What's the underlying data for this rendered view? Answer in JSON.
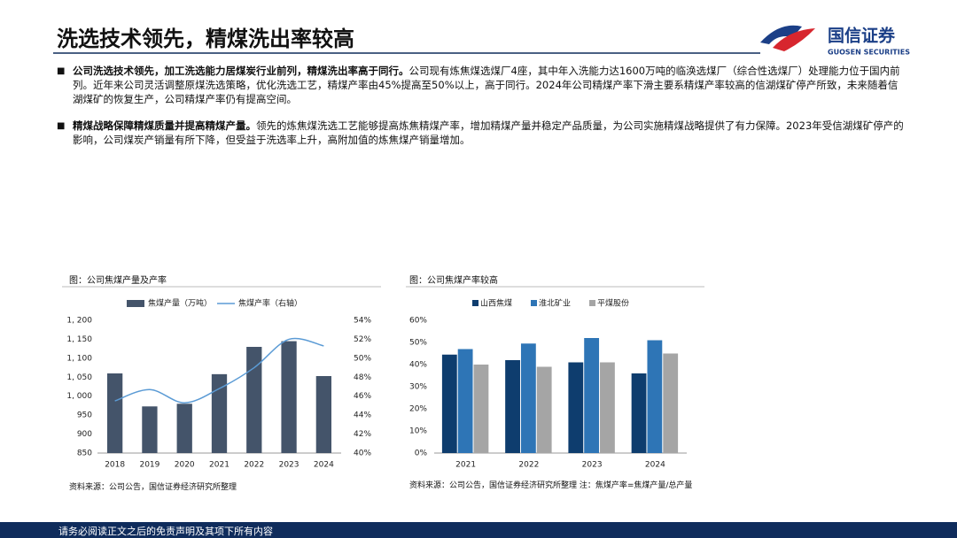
{
  "header": {
    "title": "洗选技术领先，精煤洗出率较高",
    "logo_name": "国信证券",
    "logo_sub": "GUOSEN SECURITIES"
  },
  "bullets": [
    {
      "lead": "公司洗选技术领先，加工洗选能力居煤炭行业前列，精煤洗出率高于同行。",
      "text": "公司现有炼焦煤选煤厂4座，其中年入洗能力达1600万吨的临涣选煤厂（综合性选煤厂）处理能力位于国内前列。近年来公司灵活调整原煤洗选策略，优化洗选工艺，精煤产率由45%提高至50%以上，高于同行。2024年公司精煤产率下滑主要系精煤产率较高的信湖煤矿停产所致，未来随着信湖煤矿的恢复生产，公司精煤产率仍有提高空间。"
    },
    {
      "lead": "精煤战略保障精煤质量并提高精煤产量。",
      "text": "领先的炼焦煤洗选工艺能够提高炼焦精煤产率，增加精煤产量并稳定产品质量，为公司实施精煤战略提供了有力保障。2023年受信湖煤矿停产的影响，公司煤炭产销量有所下降，但受益于洗选率上升，高附加值的炼焦煤产销量增加。"
    }
  ],
  "chart_data": [
    {
      "type": "combo",
      "title": "图：公司焦煤产量及产率",
      "source": "资料来源：公司公告，国信证券经济研究所整理",
      "categories": [
        "2018",
        "2019",
        "2020",
        "2021",
        "2022",
        "2023",
        "2024"
      ],
      "series": [
        {
          "name": "焦煤产量（万吨）",
          "type": "bar",
          "color": "#44546a",
          "values": [
            1060,
            973,
            980,
            1058,
            1130,
            1145,
            1053
          ]
        },
        {
          "name": "焦煤产率（右轴）",
          "type": "line",
          "axis": "y2",
          "color": "#5b9bd5",
          "values": [
            45.5,
            46.7,
            45.3,
            46.8,
            49.0,
            52.0,
            51.3
          ]
        }
      ],
      "ylim": [
        850,
        1200
      ],
      "yticks": [
        850,
        900,
        950,
        {
          "value": 1000,
          "label": "1, 000"
        },
        {
          "value": 1050,
          "label": "1, 050"
        },
        {
          "value": 1100,
          "label": "1, 100"
        },
        {
          "value": 1150,
          "label": "1, 150"
        },
        {
          "value": 1200,
          "label": "1, 200"
        }
      ],
      "y2lim": [
        40,
        54
      ],
      "y2ticks": [
        {
          "value": 40,
          "label": "40%"
        },
        {
          "value": 42,
          "label": "42%"
        },
        {
          "value": 44,
          "label": "44%"
        },
        {
          "value": 46,
          "label": "46%"
        },
        {
          "value": 48,
          "label": "48%"
        },
        {
          "value": 50,
          "label": "50%"
        },
        {
          "value": 52,
          "label": "52%"
        },
        {
          "value": 54,
          "label": "54%"
        }
      ]
    },
    {
      "type": "bar",
      "title": "图：公司焦煤产率较高",
      "source": "资料来源：公司公告，国信证券经济研究所整理 注：焦煤产率=焦煤产量/总产量",
      "categories": [
        "2021",
        "2022",
        "2023",
        "2024"
      ],
      "series": [
        {
          "name": "山西焦煤",
          "color": "#0e3d6e",
          "values": [
            44.5,
            42,
            41,
            36
          ]
        },
        {
          "name": "淮北矿业",
          "color": "#2e75b6",
          "values": [
            47,
            49.5,
            52,
            51
          ]
        },
        {
          "name": "平煤股份",
          "color": "#a5a5a5",
          "values": [
            40,
            39,
            41,
            45
          ]
        }
      ],
      "ylim": [
        0,
        60
      ],
      "yticks": [
        {
          "value": 0,
          "label": "0%"
        },
        {
          "value": 10,
          "label": "10%"
        },
        {
          "value": 20,
          "label": "20%"
        },
        {
          "value": 30,
          "label": "30%"
        },
        {
          "value": 40,
          "label": "40%"
        },
        {
          "value": 50,
          "label": "50%"
        },
        {
          "value": 60,
          "label": "60%"
        }
      ]
    }
  ],
  "footer": "请务必阅读正文之后的免责声明及其项下所有内容"
}
